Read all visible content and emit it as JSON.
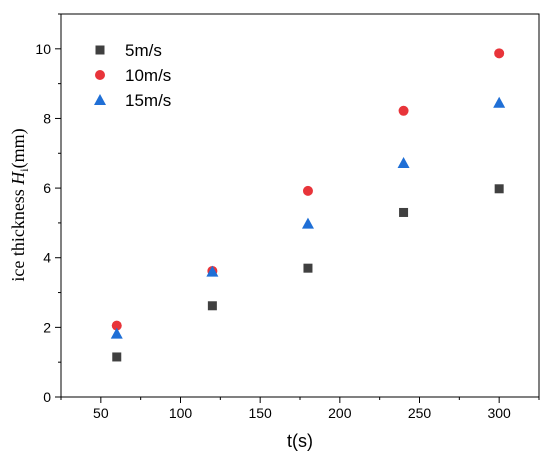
{
  "chart_data": {
    "type": "scatter",
    "xlabel": "t(s)",
    "ylabel_parts": {
      "prefix": "ice thickness ",
      "var": "H",
      "sub": "i",
      "suffix": "(mm)"
    },
    "xlim": [
      25,
      325
    ],
    "ylim": [
      0,
      11
    ],
    "x_ticks": [
      50,
      100,
      150,
      200,
      250,
      300
    ],
    "y_ticks": [
      0,
      2,
      4,
      6,
      8,
      10
    ],
    "grid": false,
    "legend_position": "top-left",
    "x": [
      60,
      120,
      180,
      240,
      300
    ],
    "series": [
      {
        "name": "5m/s",
        "marker": "square",
        "color": "#404040",
        "values": [
          1.15,
          2.62,
          3.7,
          5.3,
          5.98
        ]
      },
      {
        "name": "10m/s",
        "marker": "circle",
        "color": "#e8343a",
        "values": [
          2.05,
          3.62,
          5.92,
          8.22,
          9.87
        ]
      },
      {
        "name": "15m/s",
        "marker": "triangle",
        "color": "#1f6fd6",
        "values": [
          1.82,
          3.6,
          4.98,
          6.72,
          8.45
        ]
      }
    ]
  }
}
